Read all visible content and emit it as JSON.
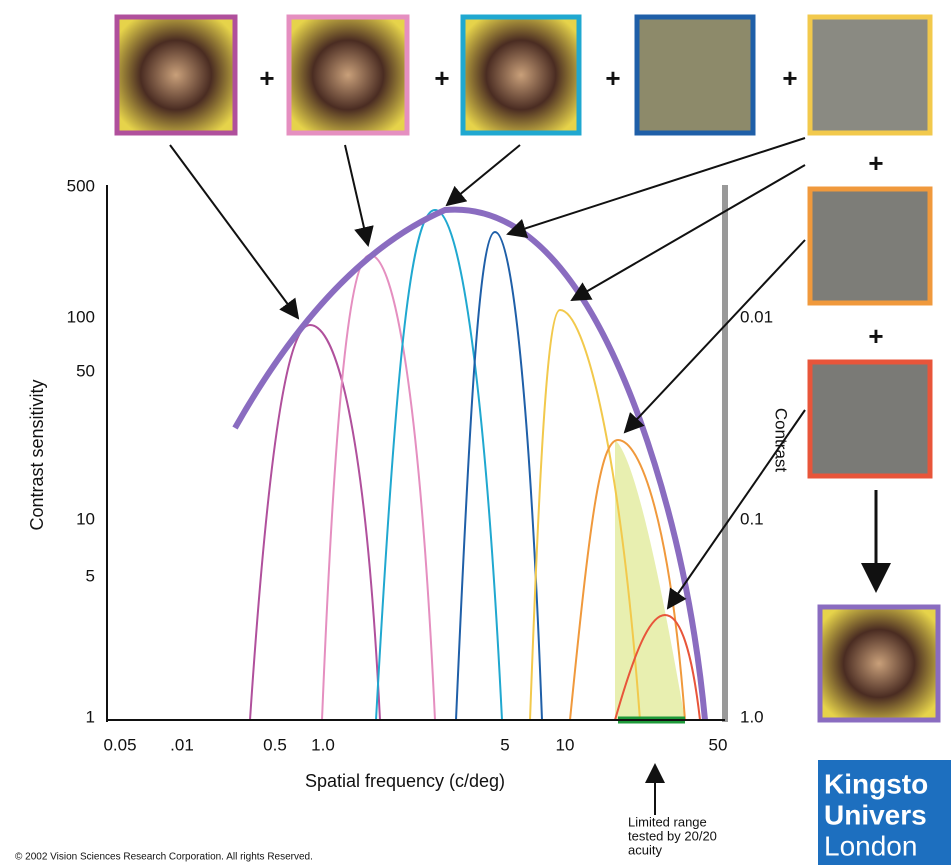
{
  "operators": [
    "+",
    "+",
    "+",
    "+",
    "+",
    "+"
  ],
  "left_axis": {
    "label": "Contrast sensitivity",
    "ticks": [
      "500",
      "100",
      "50",
      "10",
      "5",
      "1"
    ]
  },
  "right_axis": {
    "label": "Contrast",
    "ticks": [
      "0.01",
      "0.1",
      "1.0"
    ]
  },
  "x_axis": {
    "label": "Spatial frequency (c/deg)",
    "ticks": [
      "0.05",
      ".01",
      "0.5",
      "1.0",
      "5",
      "10",
      "50"
    ]
  },
  "annotation": [
    "Limited range",
    "tested by 20/20",
    "acuity"
  ],
  "copyright": "© 2002 Vision Sciences Research Corporation. All rights Reserved.",
  "logo": [
    "Kingsto",
    "Univers",
    "London"
  ]
}
